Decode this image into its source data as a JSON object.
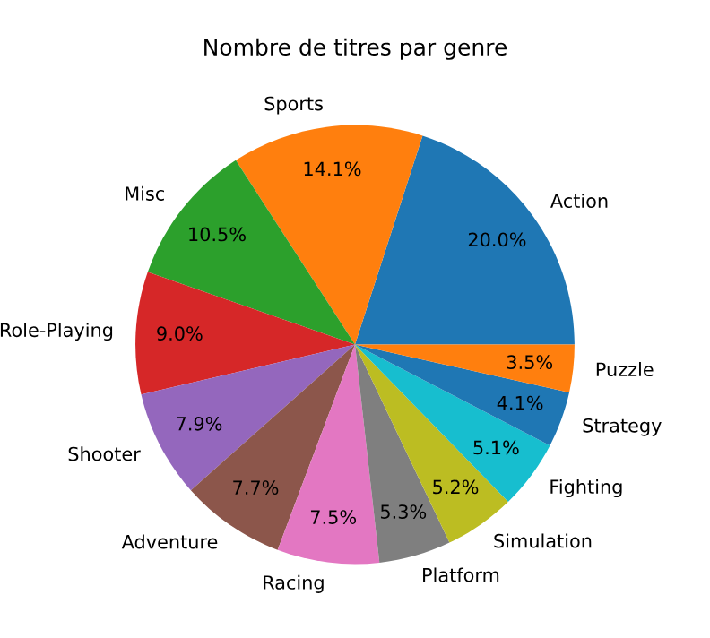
{
  "chart_data": {
    "type": "pie",
    "title": "Nombre de titres par genre",
    "categories": [
      "Action",
      "Sports",
      "Misc",
      "Role-Playing",
      "Shooter",
      "Adventure",
      "Racing",
      "Platform",
      "Simulation",
      "Fighting",
      "Strategy",
      "Puzzle"
    ],
    "values": [
      20.0,
      14.1,
      10.5,
      9.0,
      7.9,
      7.7,
      7.5,
      5.3,
      5.2,
      5.1,
      4.1,
      3.5
    ],
    "value_labels": [
      "20.0%",
      "14.1%",
      "10.5%",
      "9.0%",
      "7.9%",
      "7.7%",
      "7.5%",
      "5.3%",
      "5.2%",
      "5.1%",
      "4.1%",
      "3.5%"
    ],
    "colors": [
      "#1f77b4",
      "#ff7f0e",
      "#2ca02c",
      "#d62728",
      "#9467bd",
      "#8c564b",
      "#e377c2",
      "#7f7f7f",
      "#bcbd22",
      "#17becf",
      "#1f77b4",
      "#ff7f0e"
    ]
  }
}
